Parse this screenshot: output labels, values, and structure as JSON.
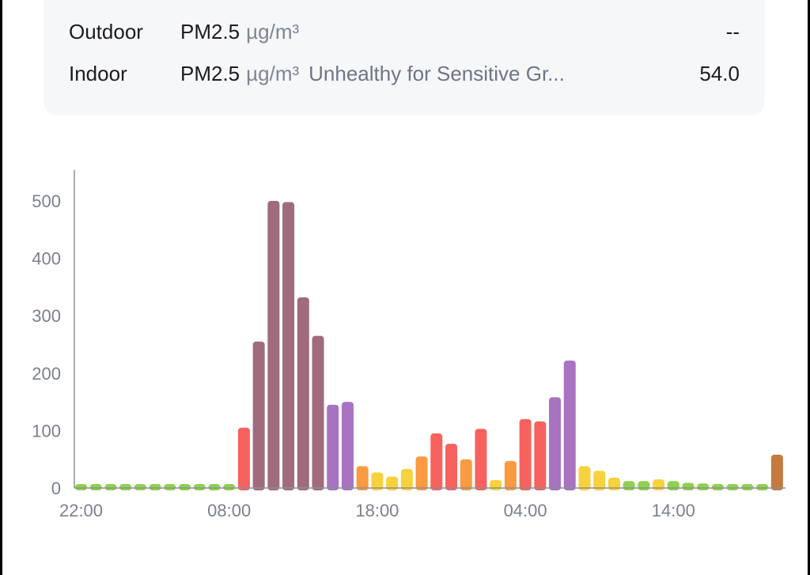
{
  "readings": [
    {
      "location": "Outdoor",
      "metric": "PM2.5",
      "unit": "µg/m³",
      "status": "",
      "value": "--"
    },
    {
      "location": "Indoor",
      "metric": "PM2.5",
      "unit": "µg/m³",
      "status": "Unhealthy for Sensitive Gr...",
      "value": "54.0"
    }
  ],
  "palette": {
    "good": "#8fd14f",
    "moderate": "#f7d23e",
    "usg": "#fa9a41",
    "unhealthy": "#f7625e",
    "very_unhealthy": "#a873c0",
    "hazardous": "#a06b7d",
    "current": "#c57a40"
  },
  "chart_data": {
    "type": "bar",
    "xlabel": "",
    "ylabel": "",
    "ylim": [
      0,
      520
    ],
    "yticks": [
      "0",
      "100",
      "200",
      "300",
      "400",
      "500"
    ],
    "xtick_labels": [
      {
        "index": 0,
        "label": "22:00"
      },
      {
        "index": 10,
        "label": "08:00"
      },
      {
        "index": 20,
        "label": "18:00"
      },
      {
        "index": 30,
        "label": "04:00"
      },
      {
        "index": 40,
        "label": "14:00"
      }
    ],
    "grid": false,
    "values": [
      4,
      4,
      4,
      4,
      4,
      4,
      4,
      4,
      4,
      6,
      6,
      105,
      255,
      500,
      498,
      332,
      265,
      145,
      150,
      38,
      27,
      20,
      33,
      55,
      95,
      77,
      50,
      103,
      14,
      47,
      120,
      116,
      158,
      222,
      38,
      30,
      18,
      12,
      12,
      15,
      12,
      9,
      8,
      7,
      6,
      6,
      6,
      58
    ],
    "categories_color": [
      "good",
      "good",
      "good",
      "good",
      "good",
      "good",
      "good",
      "good",
      "good",
      "good",
      "good",
      "unhealthy",
      "hazardous",
      "hazardous",
      "hazardous",
      "hazardous",
      "hazardous",
      "very_unhealthy",
      "very_unhealthy",
      "usg",
      "moderate",
      "moderate",
      "moderate",
      "usg",
      "unhealthy",
      "unhealthy",
      "usg",
      "unhealthy",
      "moderate",
      "usg",
      "unhealthy",
      "unhealthy",
      "very_unhealthy",
      "very_unhealthy",
      "moderate",
      "moderate",
      "moderate",
      "good",
      "good",
      "moderate",
      "good",
      "good",
      "good",
      "good",
      "good",
      "good",
      "good",
      "current"
    ]
  }
}
